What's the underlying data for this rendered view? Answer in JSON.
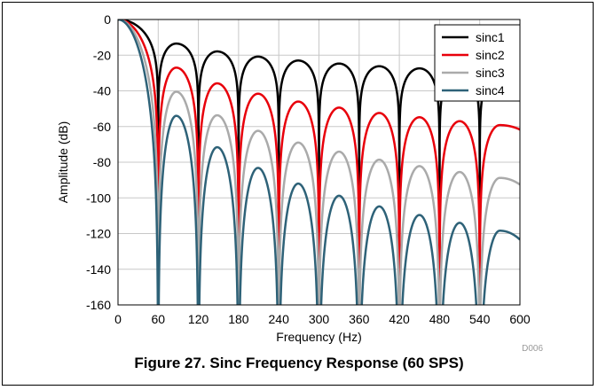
{
  "caption": "Figure 27. Sinc Frequency Response (60 SPS)",
  "doc_code": "D006",
  "chart_data": {
    "type": "line",
    "xlabel": "Frequency (Hz)",
    "ylabel": "Amplitude (dB)",
    "xlim": [
      0,
      600
    ],
    "ylim": [
      -160,
      0
    ],
    "xticks": [
      0,
      60,
      120,
      180,
      240,
      300,
      360,
      420,
      480,
      540,
      600
    ],
    "yticks": [
      0,
      -20,
      -40,
      -60,
      -80,
      -100,
      -120,
      -140,
      -160
    ],
    "grid": true,
    "legend_position": "top-right",
    "notch_frequencies": [
      60,
      120,
      180,
      240,
      300,
      360,
      420,
      480,
      540
    ],
    "lobe_peak_frequencies": [
      87,
      148,
      209,
      269,
      330,
      390,
      450,
      510,
      570
    ],
    "series": [
      {
        "name": "sinc1",
        "color": "#000000",
        "lobe_peaks_db": [
          -13.5,
          -17.9,
          -20.8,
          -23.0,
          -24.7,
          -26.2,
          -27.4,
          -28.5,
          -29.6
        ]
      },
      {
        "name": "sinc2",
        "color": "#e8000b",
        "lobe_peaks_db": [
          -27,
          -35.8,
          -41.6,
          -46.0,
          -49.4,
          -52.4,
          -54.8,
          -57.0,
          -59.2
        ]
      },
      {
        "name": "sinc3",
        "color": "#aaaaaa",
        "lobe_peaks_db": [
          -40.5,
          -53.7,
          -62.4,
          -69.0,
          -74.1,
          -78.6,
          -82.2,
          -85.5,
          -88.8
        ]
      },
      {
        "name": "sinc4",
        "color": "#2e6278",
        "lobe_peaks_db": [
          -54,
          -71.6,
          -83.2,
          -92.0,
          -98.8,
          -104.8,
          -109.6,
          -114.0,
          -118.4
        ]
      }
    ]
  }
}
